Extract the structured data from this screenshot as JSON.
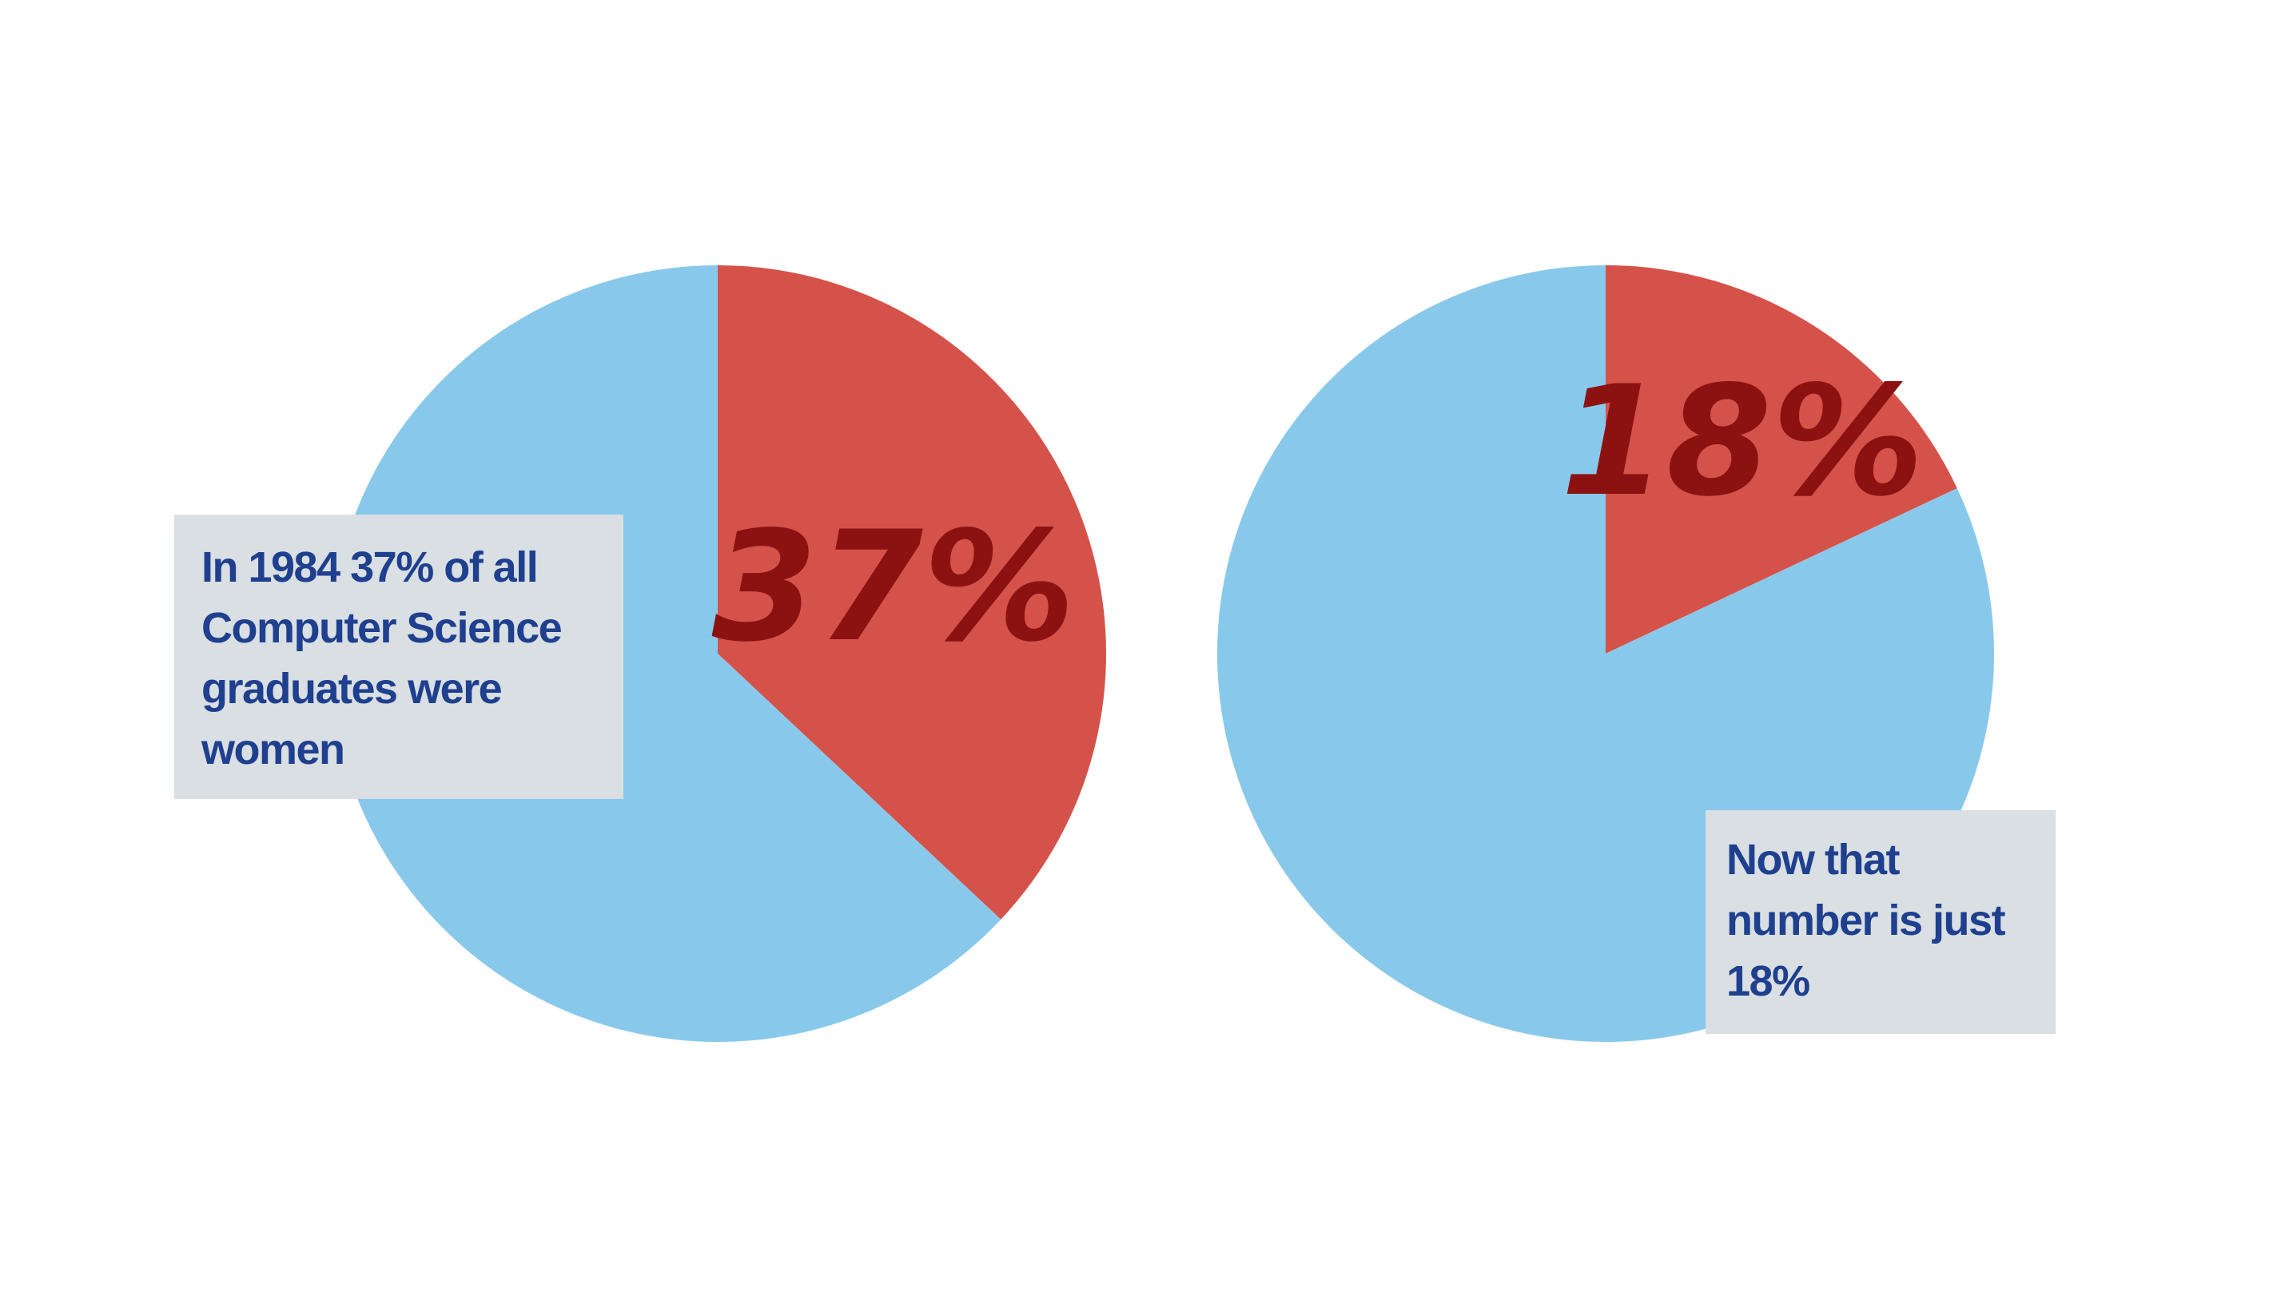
{
  "chart_data": [
    {
      "type": "pie",
      "slices": [
        {
          "label": "37%",
          "value": 37,
          "color": "#d5524a"
        },
        {
          "value": 63,
          "color": "#88c9eb"
        }
      ],
      "start_angle": "12 o'clock",
      "direction": "clockwise",
      "annotation": "In 1984 37% of all Computer Science graduates were women"
    },
    {
      "type": "pie",
      "slices": [
        {
          "label": "18%",
          "value": 18,
          "color": "#d5524a"
        },
        {
          "value": 82,
          "color": "#88c9eb"
        }
      ],
      "start_angle": "12 o'clock",
      "direction": "clockwise",
      "annotation": "Now that number is just 18%"
    }
  ],
  "colors": {
    "highlight_slice": "#d5524a",
    "other_slice": "#88c9eb",
    "percent_text": "#8c1212",
    "callout_background": "#d9dfe2",
    "callout_text": "#1f3f8f"
  }
}
